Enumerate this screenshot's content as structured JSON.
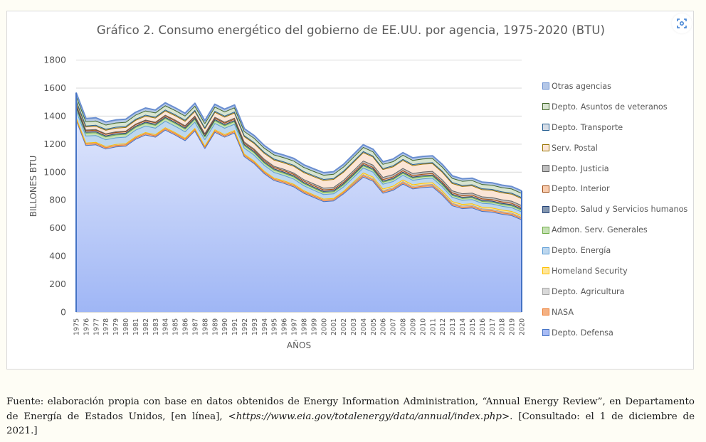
{
  "chart_data": {
    "type": "area",
    "stacked": true,
    "title": "Gráfico 2. Consumo energético del gobierno de EE.UU. por agencia, 1975-2020 (BTU)",
    "xlabel": "AÑOS",
    "ylabel": "BILLONES BTU",
    "ylim": [
      0,
      1800
    ],
    "yticks": [
      0,
      200,
      400,
      600,
      800,
      1000,
      1200,
      1400,
      1600,
      1800
    ],
    "grid": true,
    "legend_position": "right",
    "x": [
      1975,
      1976,
      1977,
      1978,
      1979,
      1980,
      1981,
      1982,
      1983,
      1984,
      1985,
      1986,
      1987,
      1988,
      1989,
      1990,
      1991,
      1992,
      1993,
      1994,
      1995,
      1996,
      1997,
      1998,
      1999,
      2000,
      2001,
      2002,
      2003,
      2004,
      2005,
      2006,
      2007,
      2008,
      2009,
      2010,
      2011,
      2012,
      2013,
      2014,
      2015,
      2016,
      2017,
      2018,
      2019,
      2020
    ],
    "series": [
      {
        "name": "Depto. Defensa",
        "color": "#a9bcf5",
        "line": "#4472c4",
        "values": [
          1375,
          1190,
          1195,
          1165,
          1180,
          1185,
          1235,
          1265,
          1250,
          1300,
          1265,
          1225,
          1295,
          1170,
          1285,
          1250,
          1280,
          1110,
          1060,
          990,
          940,
          920,
          895,
          850,
          820,
          790,
          795,
          845,
          905,
          965,
          935,
          850,
          870,
          915,
          880,
          890,
          895,
          835,
          760,
          740,
          745,
          720,
          715,
          700,
          690,
          660
        ]
      },
      {
        "name": "NASA",
        "color": "#f4b183",
        "line": "#ed7d31",
        "values": [
          10,
          10,
          10,
          10,
          10,
          10,
          10,
          10,
          10,
          10,
          10,
          10,
          10,
          10,
          10,
          10,
          10,
          10,
          10,
          10,
          10,
          10,
          10,
          10,
          10,
          10,
          10,
          10,
          10,
          10,
          10,
          10,
          10,
          10,
          10,
          10,
          10,
          10,
          10,
          10,
          10,
          10,
          10,
          10,
          10,
          10
        ]
      },
      {
        "name": "Depto. Agricultura",
        "color": "#d9d9d9",
        "line": "#a5a5a5",
        "values": [
          8,
          8,
          8,
          8,
          8,
          8,
          8,
          8,
          8,
          8,
          8,
          8,
          8,
          8,
          8,
          8,
          8,
          8,
          8,
          8,
          8,
          8,
          8,
          8,
          8,
          8,
          8,
          8,
          8,
          8,
          8,
          8,
          8,
          8,
          8,
          8,
          8,
          8,
          8,
          8,
          8,
          8,
          8,
          8,
          8,
          8
        ]
      },
      {
        "name": "Homeland Security",
        "color": "#ffe699",
        "line": "#ffc000",
        "values": [
          0,
          0,
          0,
          0,
          0,
          0,
          0,
          0,
          0,
          0,
          0,
          0,
          0,
          0,
          0,
          0,
          0,
          0,
          0,
          0,
          0,
          0,
          0,
          0,
          0,
          0,
          0,
          0,
          6,
          12,
          12,
          12,
          12,
          12,
          12,
          12,
          12,
          12,
          12,
          12,
          12,
          12,
          12,
          12,
          12,
          12
        ]
      },
      {
        "name": "Depto. Energía",
        "color": "#bdd7ee",
        "line": "#5b9bd5",
        "values": [
          50,
          50,
          48,
          48,
          47,
          47,
          47,
          46,
          46,
          46,
          45,
          45,
          45,
          45,
          45,
          45,
          44,
          43,
          42,
          41,
          40,
          38,
          37,
          35,
          33,
          32,
          32,
          32,
          33,
          35,
          35,
          34,
          33,
          33,
          32,
          32,
          32,
          31,
          30,
          29,
          29,
          28,
          28,
          27,
          27,
          26
        ]
      },
      {
        "name": "Admon. Serv. Generales",
        "color": "#c5e0b4",
        "line": "#70ad47",
        "values": [
          22,
          20,
          20,
          20,
          20,
          20,
          20,
          20,
          20,
          20,
          20,
          20,
          20,
          20,
          20,
          19,
          19,
          18,
          18,
          17,
          17,
          16,
          16,
          15,
          15,
          15,
          15,
          15,
          15,
          16,
          16,
          15,
          15,
          15,
          15,
          15,
          15,
          15,
          14,
          14,
          14,
          13,
          13,
          13,
          13,
          13
        ]
      },
      {
        "name": "Depto. Salud y Servicios humanos",
        "color": "#8497b0",
        "line": "#264478",
        "values": [
          8,
          8,
          8,
          8,
          8,
          8,
          8,
          8,
          8,
          8,
          8,
          8,
          8,
          8,
          8,
          8,
          8,
          8,
          8,
          8,
          8,
          8,
          8,
          8,
          8,
          8,
          8,
          8,
          8,
          8,
          8,
          8,
          8,
          8,
          8,
          8,
          8,
          8,
          8,
          8,
          8,
          8,
          8,
          8,
          8,
          8
        ]
      },
      {
        "name": "Depto. Interior",
        "color": "#f8cbad",
        "line": "#9e480e",
        "values": [
          10,
          10,
          10,
          10,
          10,
          10,
          10,
          10,
          10,
          10,
          10,
          10,
          10,
          10,
          10,
          10,
          10,
          10,
          10,
          10,
          10,
          10,
          10,
          10,
          10,
          10,
          10,
          10,
          10,
          10,
          10,
          10,
          10,
          10,
          10,
          10,
          10,
          10,
          10,
          10,
          10,
          10,
          10,
          10,
          10,
          10
        ]
      },
      {
        "name": "Depto. Justicia",
        "color": "#bfbfbf",
        "line": "#636363",
        "values": [
          5,
          5,
          5,
          5,
          5,
          5,
          5,
          5,
          5,
          5,
          6,
          6,
          6,
          6,
          7,
          7,
          7,
          8,
          8,
          9,
          9,
          10,
          10,
          11,
          12,
          13,
          13,
          14,
          15,
          16,
          16,
          16,
          16,
          16,
          16,
          16,
          16,
          16,
          15,
          15,
          15,
          15,
          15,
          15,
          15,
          15
        ]
      },
      {
        "name": "Serv. Postal",
        "color": "#fbe5d6",
        "line": "#997300",
        "values": [
          20,
          22,
          24,
          25,
          26,
          26,
          27,
          28,
          29,
          30,
          31,
          32,
          33,
          34,
          35,
          36,
          37,
          38,
          40,
          42,
          44,
          46,
          48,
          50,
          52,
          55,
          57,
          58,
          60,
          60,
          58,
          56,
          56,
          57,
          56,
          56,
          55,
          54,
          52,
          52,
          52,
          51,
          51,
          50,
          50,
          50
        ]
      },
      {
        "name": "Depto. Transporte",
        "color": "#d6dce5",
        "line": "#255e91",
        "values": [
          7,
          7,
          7,
          7,
          7,
          7,
          7,
          7,
          7,
          7,
          7,
          7,
          7,
          7,
          7,
          7,
          7,
          7,
          7,
          7,
          7,
          7,
          7,
          7,
          7,
          7,
          7,
          7,
          7,
          7,
          7,
          7,
          7,
          7,
          7,
          7,
          7,
          7,
          7,
          7,
          7,
          7,
          7,
          7,
          7,
          7
        ]
      },
      {
        "name": "Depto. Asuntos de veteranos",
        "color": "#d8e4d0",
        "line": "#43682b",
        "values": [
          30,
          30,
          30,
          30,
          30,
          30,
          30,
          30,
          30,
          30,
          30,
          30,
          30,
          30,
          30,
          30,
          30,
          30,
          30,
          30,
          30,
          30,
          30,
          30,
          30,
          30,
          30,
          30,
          30,
          30,
          30,
          30,
          30,
          30,
          30,
          30,
          30,
          30,
          30,
          30,
          30,
          30,
          30,
          30,
          30,
          30
        ]
      },
      {
        "name": "Otras agencias",
        "color": "#b4c7e7",
        "line": "#698ed0",
        "values": [
          20,
          20,
          20,
          20,
          19,
          19,
          18,
          18,
          18,
          18,
          17,
          17,
          17,
          17,
          17,
          17,
          17,
          17,
          17,
          16,
          16,
          16,
          16,
          16,
          16,
          16,
          16,
          16,
          16,
          16,
          16,
          16,
          16,
          16,
          16,
          16,
          16,
          16,
          15,
          15,
          15,
          15,
          15,
          15,
          15,
          15
        ]
      }
    ]
  },
  "legend": [
    "Otras agencias",
    "Depto. Asuntos de veteranos",
    "Depto. Transporte",
    "Serv. Postal",
    "Depto. Justicia",
    "Depto. Interior",
    "Depto. Salud y Servicios humanos",
    "Admon. Serv. Generales",
    "Depto. Energía",
    "Homeland Security",
    "Depto. Agricultura",
    "NASA",
    "Depto. Defensa"
  ],
  "zoom_button_icon": "zoom-focus-icon",
  "source_note": {
    "prefix": "Fuente: elaboración propia con base en datos obtenidos de Energy Information Administration, “Annual Energy Review”, en Departamento de Energía de Estados Unidos, [en línea], <",
    "url": "https://www.eia.gov/totalenergy/data/annual/index.php",
    "suffix": ">. [Consultado: el 1 de diciembre de 2021.]"
  }
}
